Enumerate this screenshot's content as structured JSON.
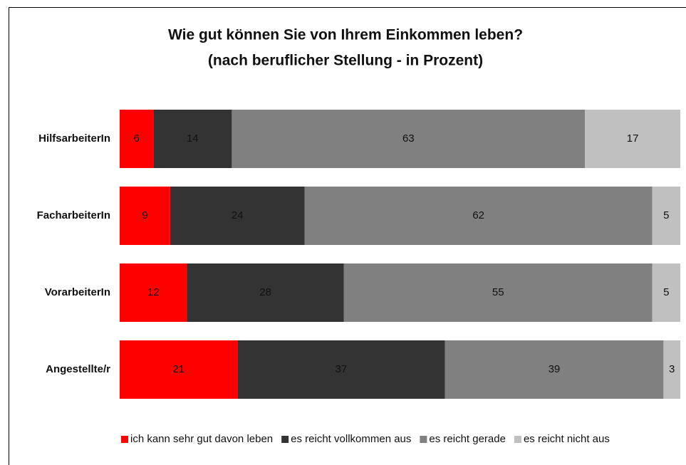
{
  "chart_data": {
    "type": "bar",
    "orientation": "horizontal",
    "stacked": true,
    "title": "Wie gut können Sie von Ihrem Einkommen leben?",
    "subtitle": "(nach beruflicher Stellung - in Prozent)",
    "categories": [
      "HilfsarbeiterIn",
      "FacharbeiterIn",
      "VorarbeiterIn",
      "Angestellte/r"
    ],
    "series": [
      {
        "name": "ich kann sehr gut davon leben",
        "color": "#ff0000",
        "values": [
          6,
          9,
          12,
          21
        ]
      },
      {
        "name": "es reicht vollkommen aus",
        "color": "#333333",
        "values": [
          14,
          24,
          28,
          37
        ]
      },
      {
        "name": "es reicht gerade",
        "color": "#808080",
        "values": [
          63,
          62,
          55,
          39
        ]
      },
      {
        "name": "es reicht nicht aus",
        "color": "#c0c0c0",
        "values": [
          17,
          5,
          5,
          3
        ]
      }
    ],
    "xlim": [
      0,
      100
    ],
    "legend": "bottom"
  }
}
